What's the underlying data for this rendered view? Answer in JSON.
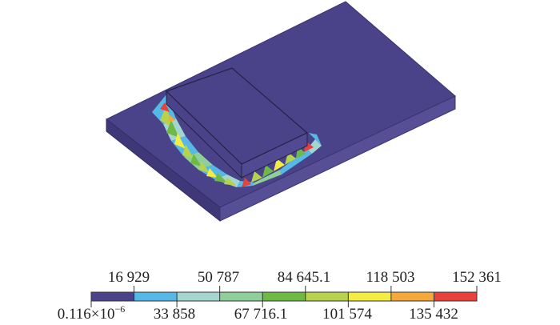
{
  "chart_data": {
    "type": "heatmap",
    "colorbar": {
      "upper_labels": [
        "16 929",
        "50 787",
        "84 645.1",
        "118 503",
        "152 361"
      ],
      "lower_labels": [
        "0.116×10",
        "33 858",
        "67 716.1",
        "101 574",
        "135 432"
      ],
      "first_label_exponent": "−6",
      "values": [
        1.16e-07,
        16929,
        33858,
        50787,
        67716.1,
        84645.1,
        101574,
        118503,
        135432,
        152361
      ],
      "colors": [
        "#4b438a",
        "#55b8e6",
        "#a4d6d0",
        "#8fcf9a",
        "#6fba45",
        "#b7d34e",
        "#f2ec44",
        "#f5a93c",
        "#e8403a"
      ]
    },
    "model": {
      "base_plate_color": "#4b438a",
      "component_color": "#4b438a",
      "contour_colors": [
        "#55b8e6",
        "#a4d6d0",
        "#8fcf9a",
        "#6fba45",
        "#b7d34e",
        "#f2ec44",
        "#f5a93c",
        "#e8403a"
      ]
    }
  }
}
